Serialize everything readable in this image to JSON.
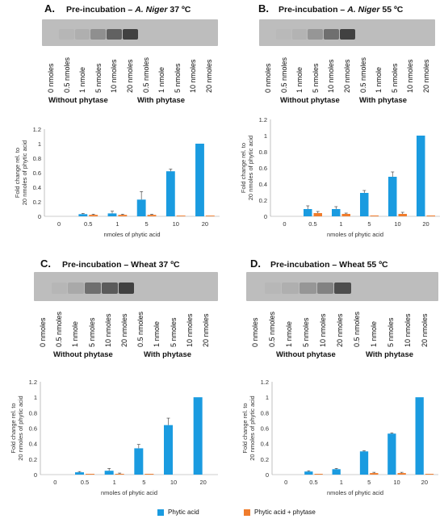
{
  "colors": {
    "phytic_acid": "#1a9be0",
    "phytic_acid_phytase": "#f07c2c",
    "gel_bg": "#bdbdbd",
    "gel_band": "#3a3a3a"
  },
  "lane_labels": [
    "0 nmoles",
    "0.5 nmoles",
    "1 nmole",
    "5 nmoles",
    "10 nmoles",
    "20 nmoles",
    "0.5 nmoles",
    "1 nmole",
    "5 nmoles",
    "10 nmoles",
    "20 nmoles"
  ],
  "group_labels": {
    "without": "Without phytase",
    "with": "With phytase"
  },
  "legend": {
    "phytic_acid": "Phytic acid",
    "phytic_acid_phytase": "Phytic acid + phytase"
  },
  "panels": [
    {
      "letter": "A.",
      "title_prefix": "Pre-incubation – ",
      "title_italic": "A. Niger",
      "title_suffix": " 37 ºC",
      "gel_band_intensity": [
        0.0,
        0.05,
        0.1,
        0.35,
        0.7,
        0.95,
        0.0,
        0.0,
        0.0,
        0.0,
        0.0
      ]
    },
    {
      "letter": "B.",
      "title_prefix": "Pre-incubation – ",
      "title_italic": "A. Niger",
      "title_suffix": " 55 ºC",
      "gel_band_intensity": [
        0.0,
        0.03,
        0.08,
        0.3,
        0.6,
        0.95,
        0.0,
        0.0,
        0.0,
        0.0,
        0.0
      ]
    },
    {
      "letter": "C.",
      "title_prefix": "Pre-incubation – Wheat 37 ºC",
      "title_italic": "",
      "title_suffix": "",
      "gel_band_intensity": [
        0.0,
        0.05,
        0.15,
        0.6,
        0.75,
        0.95,
        0.0,
        0.0,
        0.0,
        0.0,
        0.0
      ]
    },
    {
      "letter": "D.",
      "title_prefix": "Pre-incubation – Wheat 55 ºC",
      "title_italic": "",
      "title_suffix": "",
      "gel_band_intensity": [
        0.0,
        0.04,
        0.1,
        0.3,
        0.45,
        0.85,
        0.0,
        0.0,
        0.0,
        0.0,
        0.0
      ]
    }
  ],
  "chart_data": [
    {
      "type": "bar",
      "panel": "A",
      "xlabel": "nmoles of phytic acid",
      "ylabel": "Fold change rel. to 20 nmoles of phytic acid",
      "categories": [
        "0",
        "0.5",
        "1",
        "5",
        "10",
        "20"
      ],
      "ylim": [
        0,
        1.2
      ],
      "yticks": [
        0,
        0.2,
        0.4,
        0.6,
        0.8,
        1,
        1.2
      ],
      "series": [
        {
          "name": "Phytic acid",
          "values": [
            0,
            0.03,
            0.04,
            0.23,
            0.62,
            1.0
          ],
          "errors": [
            0,
            0.01,
            0.03,
            0.11,
            0.03,
            0
          ]
        },
        {
          "name": "Phytic acid + phytase",
          "values": [
            0,
            0.02,
            0.02,
            0.02,
            0.01,
            0.01
          ],
          "errors": [
            0,
            0.01,
            0.01,
            0.01,
            0,
            0
          ]
        }
      ]
    },
    {
      "type": "bar",
      "panel": "B",
      "xlabel": "nmoles of phytic acid",
      "ylabel": "Fold change rel. to 20 nmoles of phytic acid",
      "categories": [
        "0",
        "0.5",
        "1",
        "5",
        "10",
        "20"
      ],
      "ylim": [
        0,
        1.2
      ],
      "yticks": [
        0,
        0.2,
        0.4,
        0.6,
        0.8,
        1,
        1.2
      ],
      "series": [
        {
          "name": "Phytic acid",
          "values": [
            0,
            0.09,
            0.09,
            0.29,
            0.49,
            1.0
          ],
          "errors": [
            0,
            0.04,
            0.03,
            0.03,
            0.06,
            0
          ]
        },
        {
          "name": "Phytic acid + phytase",
          "values": [
            0,
            0.04,
            0.03,
            0.01,
            0.03,
            0.01
          ],
          "errors": [
            0,
            0.02,
            0.01,
            0,
            0.02,
            0
          ]
        }
      ]
    },
    {
      "type": "bar",
      "panel": "C",
      "xlabel": "nmoles of phytic acid",
      "ylabel": "Fold change rel. to 20 nmoles of phytic acid",
      "categories": [
        "0",
        "0.5",
        "1",
        "5",
        "10",
        "20"
      ],
      "ylim": [
        0,
        1.2
      ],
      "yticks": [
        0,
        0.2,
        0.4,
        0.6,
        0.8,
        1,
        1.2
      ],
      "series": [
        {
          "name": "Phytic acid",
          "values": [
            0,
            0.03,
            0.05,
            0.34,
            0.64,
            1.0
          ],
          "errors": [
            0,
            0.01,
            0.03,
            0.05,
            0.09,
            0
          ]
        },
        {
          "name": "Phytic acid + phytase",
          "values": [
            0,
            0.01,
            0.01,
            0.01,
            0.0,
            0.0
          ],
          "errors": [
            0,
            0,
            0.01,
            0,
            0,
            0
          ]
        }
      ]
    },
    {
      "type": "bar",
      "panel": "D",
      "xlabel": "nmoles of phytic acid",
      "ylabel": "Fold change rel. to 20 nmoles of phytic acid",
      "categories": [
        "0",
        "0.5",
        "1",
        "5",
        "10",
        "20"
      ],
      "ylim": [
        0,
        1.2
      ],
      "yticks": [
        0,
        0.2,
        0.4,
        0.6,
        0.8,
        1,
        1.2
      ],
      "series": [
        {
          "name": "Phytic acid",
          "values": [
            0,
            0.04,
            0.07,
            0.3,
            0.53,
            1.0
          ],
          "errors": [
            0,
            0.01,
            0.01,
            0.01,
            0.01,
            0
          ]
        },
        {
          "name": "Phytic acid + phytase",
          "values": [
            0,
            0.01,
            0.0,
            0.02,
            0.02,
            0.01
          ],
          "errors": [
            0,
            0,
            0,
            0.01,
            0.01,
            0
          ]
        }
      ]
    }
  ]
}
